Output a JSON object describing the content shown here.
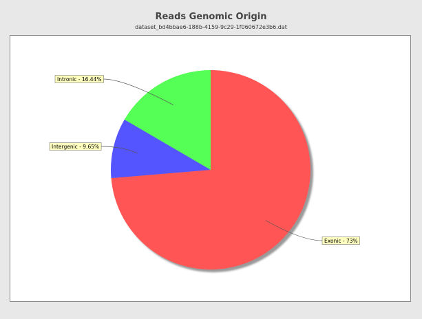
{
  "chart_data": {
    "type": "pie",
    "title": "Reads Genomic Origin",
    "subtitle": "dataset_bd4bbae6-188b-4159-9c29-1f060672e3b6.dat",
    "slices": [
      {
        "label": "Exonic - 73%",
        "value": 73.0,
        "color": "#ff5555"
      },
      {
        "label": "Intergenic - 9.65%",
        "value": 9.65,
        "color": "#5555ff"
      },
      {
        "label": "Intronic - 16.44%",
        "value": 16.44,
        "color": "#55ff55"
      }
    ],
    "start_angle_deg": 90,
    "direction": "clockwise",
    "label_background": "#ffffc0",
    "legend": "none"
  }
}
